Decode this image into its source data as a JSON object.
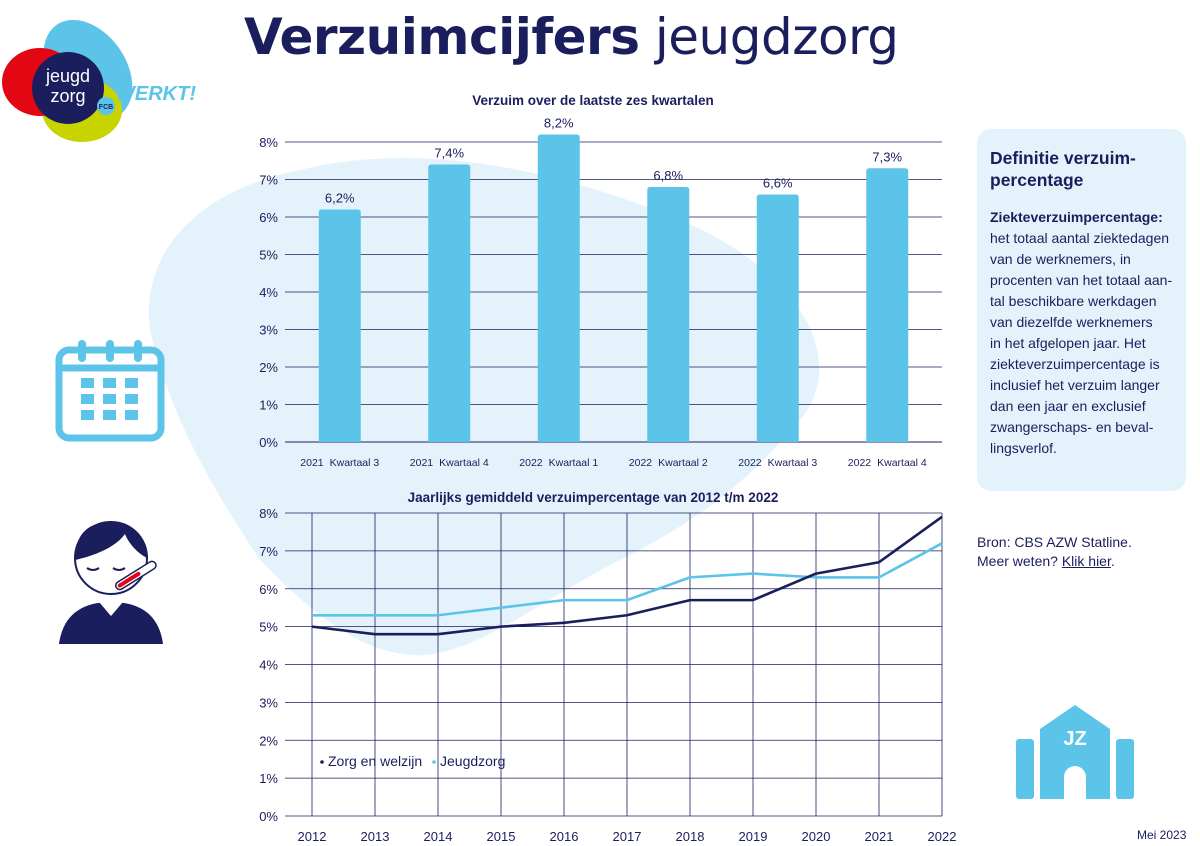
{
  "title": {
    "bold": "Verzuimcijfers",
    "light": "jeugdzorg"
  },
  "logo": {
    "line1": "jeugd",
    "line2": "zorg",
    "slogan": "WERKT!",
    "badge": "FCB"
  },
  "colors": {
    "navy": "#1b1e5c",
    "light_blue": "#5bc4e8",
    "pale_blue": "#e4f3fb",
    "red": "#e30613",
    "lime": "#c8d400"
  },
  "definition": {
    "title": "Definitie verzuim-\npercentage",
    "term": "Ziekteverzuimpercentage:",
    "text": "het totaal aantal ziektedagen\nvan de werknemers, in\nprocenten van het totaal aan-\ntal beschikbare werkdagen\nvan diezelfde werknemers\nin het afgelopen jaar. Het\nziekteverzuimpercentage is\ninclusief het verzuim langer\ndan een jaar en exclusief\nzwangerschaps- en beval-\nlingsverlof."
  },
  "source": {
    "line1": "Bron: CBS AZW Statline.",
    "line2_prefix": "Meer weten?",
    "link": "Klik hier",
    "line2_suffix": "."
  },
  "date": "Mei 2023",
  "icons": [
    "calendar-icon",
    "sick-person-icon",
    "jeugdzorg-building-icon"
  ],
  "building_label": "JZ",
  "chart_data": [
    {
      "type": "bar",
      "title": "Verzuim over de laatste zes kwartalen",
      "categories": [
        {
          "year": "2021",
          "quarter": "Kwartaal 3"
        },
        {
          "year": "2021",
          "quarter": "Kwartaal 4"
        },
        {
          "year": "2022",
          "quarter": "Kwartaal 1"
        },
        {
          "year": "2022",
          "quarter": "Kwartaal 2"
        },
        {
          "year": "2022",
          "quarter": "Kwartaal 3"
        },
        {
          "year": "2022",
          "quarter": "Kwartaal 4"
        }
      ],
      "values": [
        6.2,
        7.4,
        8.2,
        6.8,
        6.6,
        7.3
      ],
      "value_labels": [
        "6,2%",
        "7,4%",
        "8,2%",
        "6,8%",
        "6,6%",
        "7,3%"
      ],
      "ylim": [
        0,
        8
      ],
      "yticks": [
        "0%",
        "1%",
        "2%",
        "3%",
        "4%",
        "5%",
        "6%",
        "7%",
        "8%"
      ],
      "grid": "horizontal",
      "color": "#5bc4e8"
    },
    {
      "type": "line",
      "title": "Jaarlijks gemiddeld verzuimpercentage van 2012 t/m 2022",
      "x": [
        "2012",
        "2013",
        "2014",
        "2015",
        "2016",
        "2017",
        "2018",
        "2019",
        "2020",
        "2021",
        "2022"
      ],
      "series": [
        {
          "name": "Zorg en welzijn",
          "color": "#1b1e5c",
          "values": [
            5.0,
            4.8,
            4.8,
            5.0,
            5.1,
            5.3,
            5.7,
            5.7,
            6.4,
            6.7,
            7.9
          ]
        },
        {
          "name": "Jeugdzorg",
          "color": "#5bc4e8",
          "values": [
            5.3,
            5.3,
            5.3,
            5.5,
            5.7,
            5.7,
            6.3,
            6.4,
            6.3,
            6.3,
            7.2
          ]
        }
      ],
      "ylim": [
        0,
        8
      ],
      "yticks": [
        "0%",
        "1%",
        "2%",
        "3%",
        "4%",
        "5%",
        "6%",
        "7%",
        "8%"
      ],
      "grid": "both",
      "legend": "bottom-left"
    }
  ]
}
